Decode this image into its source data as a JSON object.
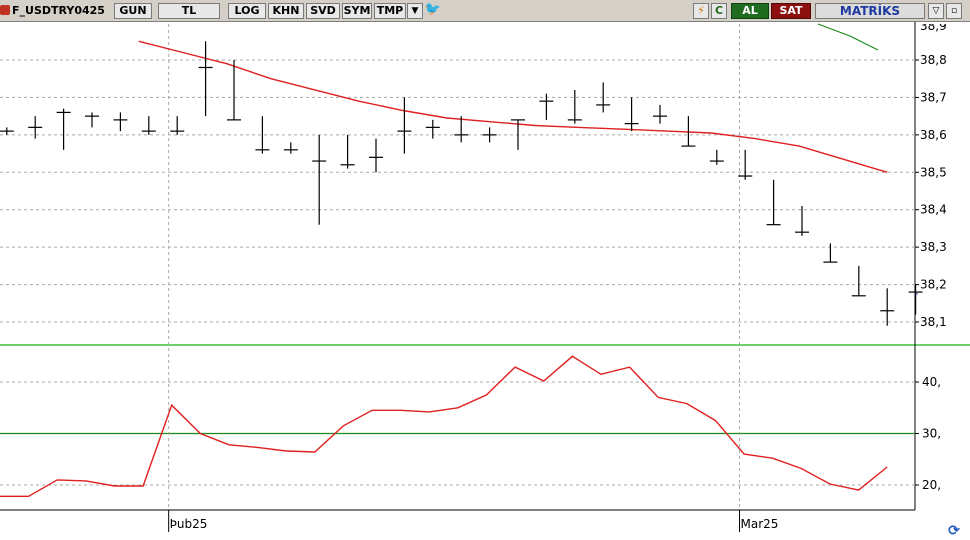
{
  "toolbar": {
    "symbol": "F_USDTRY0425",
    "period": "GUN",
    "currency": "TL",
    "buttons": [
      "LOG",
      "KHN",
      "SVD",
      "SYM",
      "TMP"
    ],
    "dropdown_icon": "chevron-down-icon",
    "twitter_icon": "bird-icon",
    "flash_icon": "lightning-icon",
    "refresh_label": "C",
    "buy_label": "AL",
    "sell_label": "SAT",
    "brand": "MATRİKS",
    "window_icons": [
      "restore-icon",
      "minimize-icon"
    ],
    "colors": {
      "buy": "#1f6b1f",
      "sell": "#8c1010",
      "brand": "#1f3aa0"
    }
  },
  "chart_data": [
    {
      "type": "ohlc",
      "series": [
        {
          "type": "hlc-bars",
          "values": [
            {
              "h": 38.62,
              "l": 38.6,
              "c": 38.61
            },
            {
              "h": 38.65,
              "l": 38.59,
              "c": 38.62
            },
            {
              "h": 38.67,
              "l": 38.56,
              "c": 38.66
            },
            {
              "h": 38.66,
              "l": 38.62,
              "c": 38.65
            },
            {
              "h": 38.66,
              "l": 38.61,
              "c": 38.64
            },
            {
              "h": 38.65,
              "l": 38.6,
              "c": 38.61
            },
            {
              "h": 38.65,
              "l": 38.6,
              "c": 38.61
            },
            {
              "h": 38.85,
              "l": 38.65,
              "c": 38.78
            },
            {
              "h": 38.8,
              "l": 38.64,
              "c": 38.64
            },
            {
              "h": 38.65,
              "l": 38.55,
              "c": 38.56
            },
            {
              "h": 38.58,
              "l": 38.55,
              "c": 38.56
            },
            {
              "h": 38.6,
              "l": 38.36,
              "c": 38.53
            },
            {
              "h": 38.6,
              "l": 38.51,
              "c": 38.52
            },
            {
              "h": 38.59,
              "l": 38.5,
              "c": 38.54
            },
            {
              "h": 38.7,
              "l": 38.55,
              "c": 38.61
            },
            {
              "h": 38.64,
              "l": 38.59,
              "c": 38.62
            },
            {
              "h": 38.65,
              "l": 38.58,
              "c": 38.6
            },
            {
              "h": 38.62,
              "l": 38.58,
              "c": 38.6
            },
            {
              "h": 38.64,
              "l": 38.56,
              "c": 38.64
            },
            {
              "h": 38.71,
              "l": 38.64,
              "c": 38.69
            },
            {
              "h": 38.72,
              "l": 38.63,
              "c": 38.64
            },
            {
              "h": 38.74,
              "l": 38.66,
              "c": 38.68
            },
            {
              "h": 38.7,
              "l": 38.61,
              "c": 38.63
            },
            {
              "h": 38.68,
              "l": 38.63,
              "c": 38.65
            },
            {
              "h": 38.65,
              "l": 38.57,
              "c": 38.57
            },
            {
              "h": 38.56,
              "l": 38.52,
              "c": 38.53
            },
            {
              "h": 38.56,
              "l": 38.48,
              "c": 38.49
            },
            {
              "h": 38.48,
              "l": 38.36,
              "c": 38.36
            },
            {
              "h": 38.41,
              "l": 38.33,
              "c": 38.34
            },
            {
              "h": 38.31,
              "l": 38.26,
              "c": 38.26
            },
            {
              "h": 38.25,
              "l": 38.17,
              "c": 38.17
            },
            {
              "h": 38.19,
              "l": 38.09,
              "c": 38.13
            },
            {
              "h": 38.2,
              "l": 38.12,
              "c": 38.18
            }
          ]
        },
        {
          "name": "",
          "type": "line",
          "color": "#e02020",
          "values": [
            38.85,
            38.82,
            38.79,
            38.75,
            38.72,
            38.69,
            38.665,
            38.645,
            38.635,
            38.625,
            38.62,
            38.615,
            38.61,
            38.605,
            38.59,
            38.57,
            38.535,
            38.5
          ]
        }
      ],
      "ylim": [
        38.04,
        38.89
      ],
      "y_ticks": [
        "38,8",
        "38,7",
        "38,6",
        "38,5",
        "38,4",
        "38,3",
        "38,2",
        "38,1"
      ],
      "last_price": 38.175,
      "grid": true,
      "legend": "none"
    },
    {
      "type": "line",
      "series": [
        {
          "name": "",
          "color": "#e02020",
          "values": [
            17.8,
            17.8,
            21.0,
            20.8,
            19.8,
            19.8,
            35.5,
            30.0,
            27.8,
            27.3,
            26.6,
            26.4,
            31.5,
            34.5,
            34.5,
            34.2,
            35.0,
            37.5,
            42.9,
            40.2,
            45.0,
            41.5,
            42.9,
            37.0,
            35.8,
            32.5,
            26.0,
            25.2,
            23.2,
            20.2,
            19.0,
            23.5
          ]
        }
      ],
      "reference_line": {
        "value": 30,
        "color": "#1a8a1a"
      },
      "ylim": [
        16,
        48
      ],
      "y_ticks": [
        "40,",
        "30,",
        "20,"
      ],
      "grid": true,
      "legend": "none"
    }
  ],
  "x_axis": {
    "labels": [
      "Þub25",
      "Mar25"
    ]
  }
}
